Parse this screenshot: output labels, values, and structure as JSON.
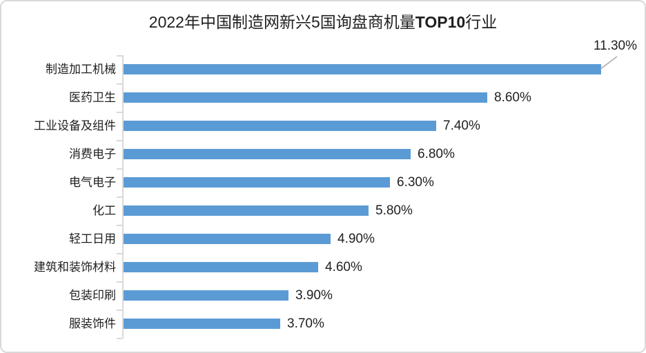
{
  "title": {
    "prefix": "2022年中国制造网新兴5国询盘商机量",
    "highlight": "TOP10",
    "suffix": "行业"
  },
  "chart_data": {
    "type": "bar",
    "orientation": "horizontal",
    "title": "2022年中国制造网新兴5国询盘商机量TOP10行业",
    "categories": [
      "制造加工机械",
      "医药卫生",
      "工业设备及组件",
      "消费电子",
      "电气电子",
      "化工",
      "轻工日用",
      "建筑和装饰材料",
      "包装印刷",
      "服装饰件"
    ],
    "values": [
      11.3,
      8.6,
      7.4,
      6.8,
      6.3,
      5.8,
      4.9,
      4.6,
      3.9,
      3.7
    ],
    "labels": [
      "11.30%",
      "8.60%",
      "7.40%",
      "6.80%",
      "6.30%",
      "5.80%",
      "4.90%",
      "4.60%",
      "3.90%",
      "3.70%"
    ],
    "xlabel": "",
    "ylabel": "",
    "xlim": [
      0,
      11.3
    ],
    "grid": false,
    "legend_position": "none",
    "value_labels": "outside-end",
    "first_label_callout": true,
    "bar_color": "#5B9BD5",
    "axis_color": "#D9D9D9",
    "leader_line_color": "#A6A6A6",
    "border_color": "#D9D9D9",
    "text_color": "#1f1f1f",
    "background_color": "#ffffff"
  }
}
